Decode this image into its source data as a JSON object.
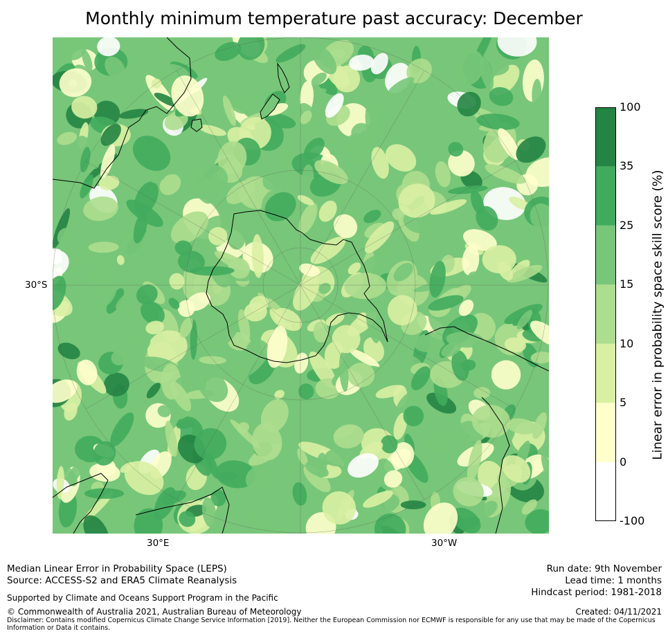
{
  "title": "Monthly minimum temperature past accuracy: December",
  "map": {
    "latitude_label": "30°S",
    "longitude_labels": [
      "30°E",
      "30°W"
    ],
    "colors": {
      "0": "#ffffcc",
      "1": "#d9f0a3",
      "2": "#addd8e",
      "3": "#78c679",
      "4": "#41ab5d",
      "5": "#238443",
      "land_outline": "#000000"
    }
  },
  "colorbar": {
    "title": "Linear error in probability space skill score (%)",
    "ticks": [
      "-100",
      "0",
      "5",
      "10",
      "15",
      "25",
      "35",
      "100"
    ],
    "bins": [
      {
        "from": "-100",
        "to": "0",
        "color": "#ffffff"
      },
      {
        "from": "0",
        "to": "5",
        "color": "#ffffcc"
      },
      {
        "from": "5",
        "to": "10",
        "color": "#d9f0a3"
      },
      {
        "from": "10",
        "to": "15",
        "color": "#addd8e"
      },
      {
        "from": "15",
        "to": "25",
        "color": "#78c679"
      },
      {
        "from": "25",
        "to": "35",
        "color": "#41ab5d"
      },
      {
        "from": "35",
        "to": "100",
        "color": "#238443"
      }
    ]
  },
  "footer": {
    "left_line1": "Median Linear Error in Probability Space (LEPS)",
    "left_line2": "Source: ACCESS-S2 and ERA5 Climate Reanalysis",
    "supported": "Supported by Climate and Oceans Support Program in the Pacific",
    "copyright": "© Commonwealth of Australia 2021, Australian Bureau of Meteorology",
    "disclaimer": "Disclaimer: Contains modified Copernicus Climate Change Service Information [2019]. Neither the European Commission nor ECMWF is responsible for any use that may be made of the Copernicus Information or Data it contains.",
    "run_date": "Run date: 9th November",
    "lead_time": "Lead time: 1 months",
    "hindcast": "Hindcast period: 1981-2018",
    "created": "Created: 04/11/2021"
  }
}
